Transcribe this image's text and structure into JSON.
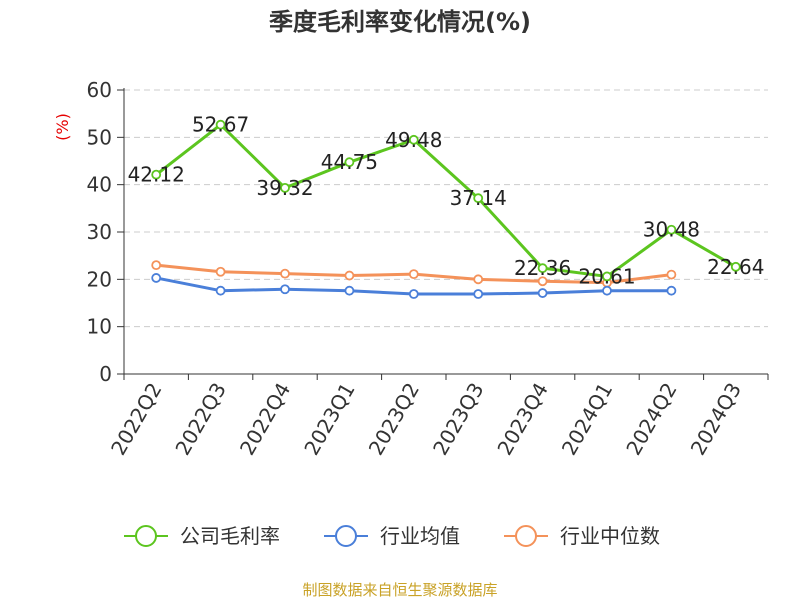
{
  "chart_data": {
    "type": "line",
    "title": "季度毛利率变化情况(%)",
    "ylabel": "(%)",
    "xlabel": "",
    "ylim": [
      0,
      60
    ],
    "yticks": [
      0,
      10,
      20,
      30,
      40,
      50,
      60
    ],
    "grid": true,
    "legend_position": "bottom",
    "categories": [
      "2022Q2",
      "2022Q3",
      "2022Q4",
      "2023Q1",
      "2023Q2",
      "2023Q3",
      "2023Q4",
      "2024Q1",
      "2024Q2",
      "2024Q3"
    ],
    "series": [
      {
        "name": "公司毛利率",
        "color": "#5cc51f",
        "show_labels": true,
        "values": [
          42.12,
          52.67,
          39.32,
          44.75,
          49.48,
          37.14,
          22.36,
          20.61,
          30.48,
          22.64
        ]
      },
      {
        "name": "行业均值",
        "color": "#4a7fd9",
        "show_labels": false,
        "values": [
          20.3,
          17.6,
          17.9,
          17.6,
          16.9,
          16.9,
          17.1,
          17.6,
          17.6,
          null
        ]
      },
      {
        "name": "行业中位数",
        "color": "#f4925a",
        "show_labels": false,
        "values": [
          23.0,
          21.6,
          21.2,
          20.8,
          21.1,
          20.0,
          19.6,
          19.3,
          21.0,
          null
        ]
      }
    ],
    "source": "制图数据来自恒生聚源数据库"
  }
}
